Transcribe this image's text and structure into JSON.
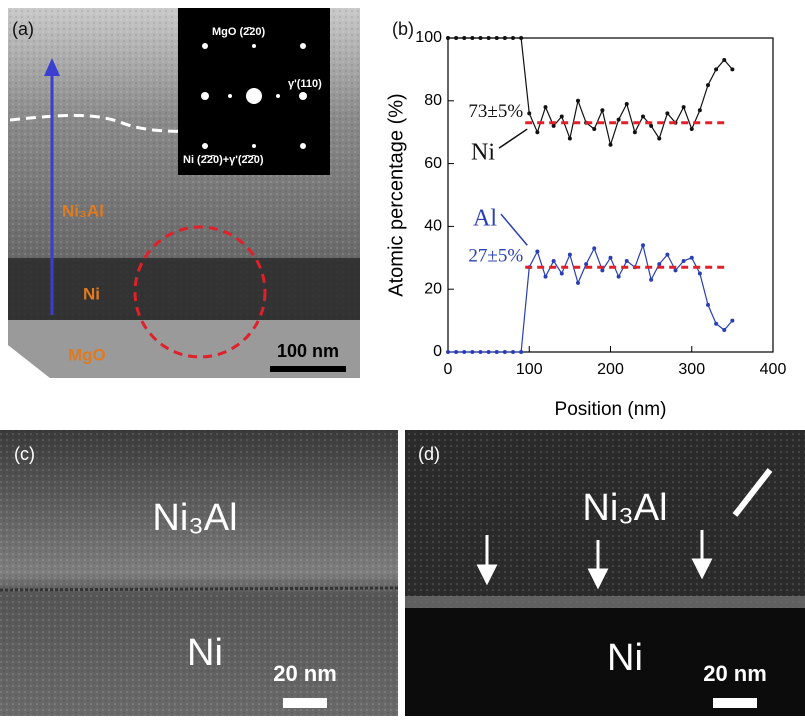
{
  "panels": {
    "a": {
      "label": "(a)",
      "inset_labels": [
        "MgO (2̄20)",
        "γ'(110)",
        "Ni (2̄2̄0)+γ'(2̄2̄0)"
      ],
      "layers": [
        "Ni₃Al",
        "Ni",
        "MgO"
      ],
      "scale_bar": "100 nm"
    },
    "c": {
      "label": "(c)",
      "layers": [
        "Ni₃Al",
        "Ni"
      ],
      "scale_bar": "20 nm"
    },
    "d": {
      "label": "(d)",
      "layers": [
        "Ni₃Al",
        "Ni"
      ],
      "scale_bar": "20 nm"
    }
  },
  "chart_data": {
    "type": "line",
    "panel_label": "(b)",
    "x_label": "Position (nm)",
    "y_label": "Atomic percentage (%)",
    "x": [
      0,
      10,
      20,
      30,
      40,
      50,
      60,
      70,
      80,
      90,
      100,
      110,
      120,
      130,
      140,
      150,
      160,
      170,
      180,
      190,
      200,
      210,
      220,
      230,
      240,
      250,
      260,
      270,
      280,
      290,
      300,
      310,
      320,
      330,
      340,
      350
    ],
    "series": [
      {
        "name": "Ni",
        "color": "#111111",
        "values": [
          100,
          100,
          100,
          100,
          100,
          100,
          100,
          100,
          100,
          100,
          76,
          70,
          78,
          72,
          75,
          68,
          80,
          73,
          71,
          77,
          66,
          74,
          79,
          70,
          75,
          72,
          68,
          76,
          73,
          78,
          71,
          77,
          85,
          90,
          93,
          90
        ]
      },
      {
        "name": "Al",
        "color": "#2b3fb5",
        "values": [
          0,
          0,
          0,
          0,
          0,
          0,
          0,
          0,
          0,
          0,
          27,
          32,
          24,
          29,
          25,
          31,
          22,
          28,
          33,
          26,
          30,
          24,
          29,
          27,
          34,
          23,
          28,
          31,
          26,
          29,
          30,
          25,
          15,
          9,
          7,
          10
        ]
      }
    ],
    "reference_lines": [
      {
        "value": 73,
        "label": "73±5%",
        "x": [
          95,
          340
        ]
      },
      {
        "value": 27,
        "label": "27±5%",
        "x": [
          95,
          340
        ]
      }
    ],
    "xlim": [
      0,
      400
    ],
    "xticks": [
      0,
      100,
      200,
      300,
      400
    ],
    "ylim": [
      0,
      100
    ],
    "yticks": [
      0,
      20,
      40,
      60,
      80,
      100
    ],
    "ref_color": "#e0202a"
  }
}
